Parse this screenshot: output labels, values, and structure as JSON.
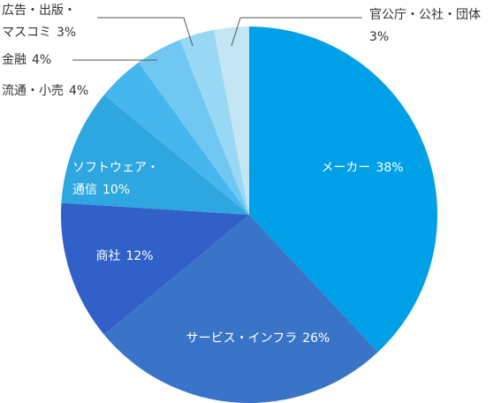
{
  "chart_data": {
    "type": "pie",
    "categories": [
      "メーカー",
      "サービス・インフラ",
      "商社",
      [
        "ソフトウェア・",
        "通信"
      ],
      "流通・小売",
      "金融",
      [
        "広告・出版・",
        "マスコミ"
      ],
      "官公庁・公社・団体"
    ],
    "values": [
      38,
      26,
      12,
      10,
      4,
      4,
      3,
      3
    ],
    "value_labels": [
      "38%",
      "26%",
      "12%",
      "10%",
      "4%",
      "4%",
      "3%",
      "3%"
    ],
    "colors": [
      "#00a0e9",
      "#3a74c8",
      "#3060c8",
      "#2ea6e0",
      "#46b6ee",
      "#70c8f2",
      "#98d8f4",
      "#c4e6f4"
    ]
  }
}
